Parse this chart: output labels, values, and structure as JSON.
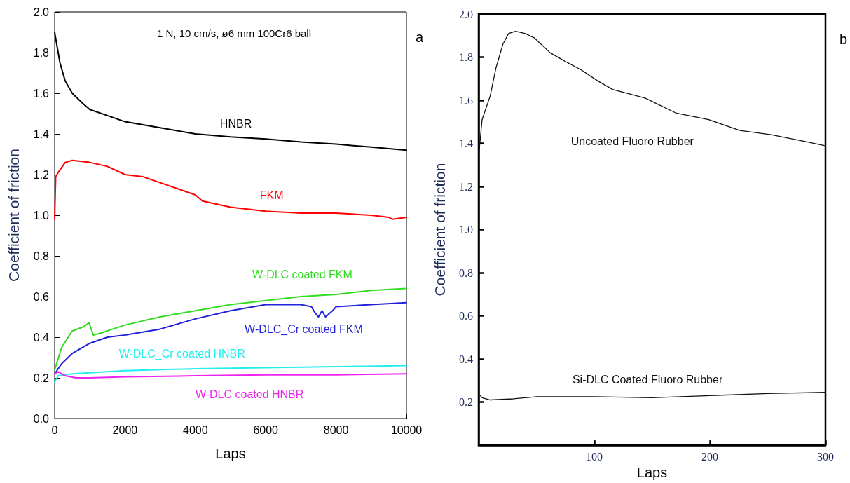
{
  "chart_data": [
    {
      "type": "line",
      "title": "1 N, 10 cm/s, ø6 mm 100Cr6 ball",
      "xlabel": "Laps",
      "ylabel": "Coefficient of friction",
      "xlim": [
        0,
        10000
      ],
      "ylim": [
        0,
        2
      ],
      "xticks": [
        0,
        2000,
        4000,
        6000,
        8000,
        10000
      ],
      "yticks": [
        {
          "value": 0,
          "label": "0.0"
        },
        {
          "value": 0.2,
          "label": "0.2"
        },
        {
          "value": 0.4,
          "label": "0.4"
        },
        {
          "value": 0.6,
          "label": "0.6"
        },
        {
          "value": 0.8,
          "label": "0.8"
        },
        {
          "value": 1,
          "label": "1.0"
        },
        {
          "value": 1.2,
          "label": "1.2"
        },
        {
          "value": 1.4,
          "label": "1.4"
        },
        {
          "value": 1.6,
          "label": "1.6"
        },
        {
          "value": 1.8,
          "label": "1.8"
        },
        {
          "value": 2,
          "label": "2.0"
        }
      ],
      "grid": false,
      "marker": "none",
      "line_style": "solid",
      "series": [
        {
          "name": "HNBR",
          "color": "#000000",
          "x": [
            0,
            50,
            150,
            300,
            500,
            800,
            1000,
            1500,
            2000,
            3000,
            4000,
            5000,
            6000,
            7000,
            8000,
            9000,
            10000
          ],
          "values": [
            1.9,
            1.85,
            1.75,
            1.66,
            1.6,
            1.55,
            1.52,
            1.49,
            1.46,
            1.43,
            1.4,
            1.385,
            1.375,
            1.36,
            1.35,
            1.335,
            1.32
          ]
        },
        {
          "name": "FKM",
          "color": "#ff0000",
          "x": [
            0,
            30,
            100,
            300,
            500,
            1000,
            1500,
            2000,
            2500,
            3000,
            3500,
            4000,
            4200,
            5000,
            6000,
            7000,
            8000,
            9000,
            9500,
            9600,
            10000
          ],
          "values": [
            0.98,
            1.19,
            1.21,
            1.26,
            1.27,
            1.26,
            1.24,
            1.2,
            1.19,
            1.16,
            1.13,
            1.1,
            1.07,
            1.04,
            1.02,
            1.01,
            1.01,
            1.0,
            0.99,
            0.98,
            0.99
          ]
        },
        {
          "name": "W-DLC coated FKM",
          "color": "#33dd22",
          "x": [
            0,
            200,
            500,
            800,
            980,
            1100,
            1300,
            2000,
            3000,
            4000,
            5000,
            6000,
            7000,
            8000,
            9000,
            10000
          ],
          "values": [
            0.24,
            0.35,
            0.43,
            0.45,
            0.47,
            0.41,
            0.42,
            0.46,
            0.5,
            0.53,
            0.56,
            0.58,
            0.6,
            0.61,
            0.63,
            0.64
          ]
        },
        {
          "name": "W-DLC_Cr coated FKM",
          "color": "#2222dd",
          "x": [
            0,
            200,
            500,
            1000,
            1500,
            2000,
            3000,
            4000,
            5000,
            6000,
            7000,
            7300,
            7400,
            7500,
            7600,
            7700,
            7900,
            8000,
            9000,
            10000
          ],
          "values": [
            0.22,
            0.27,
            0.32,
            0.37,
            0.4,
            0.41,
            0.44,
            0.49,
            0.53,
            0.56,
            0.56,
            0.55,
            0.52,
            0.5,
            0.53,
            0.5,
            0.53,
            0.55,
            0.56,
            0.57
          ]
        },
        {
          "name": "W-DLC_Cr coated HNBR",
          "color": "#22eeee",
          "x": [
            0,
            100,
            500,
            1000,
            2000,
            4000,
            6000,
            8000,
            10000
          ],
          "values": [
            0.18,
            0.21,
            0.22,
            0.225,
            0.235,
            0.245,
            0.25,
            0.255,
            0.26
          ]
        },
        {
          "name": "W-DLC coated HNBR",
          "color": "#ee22ee",
          "x": [
            0,
            100,
            300,
            600,
            1000,
            2000,
            4000,
            6000,
            8000,
            10000
          ],
          "values": [
            0.22,
            0.23,
            0.21,
            0.2,
            0.2,
            0.205,
            0.21,
            0.215,
            0.215,
            0.22
          ]
        }
      ],
      "annotations": [
        "a"
      ]
    },
    {
      "type": "line",
      "xlabel": "Laps",
      "ylabel": "Coefficient of friction",
      "xlim": [
        0,
        300
      ],
      "ylim": [
        0,
        2
      ],
      "xticks": [
        100,
        200,
        300
      ],
      "yticks": [
        {
          "value": 0.2,
          "label": "0.2"
        },
        {
          "value": 0.4,
          "label": "0.4"
        },
        {
          "value": 0.6,
          "label": "0.6"
        },
        {
          "value": 0.8,
          "label": "0.8"
        },
        {
          "value": 1,
          "label": "1.0"
        },
        {
          "value": 1.2,
          "label": "1.2"
        },
        {
          "value": 1.4,
          "label": "1.4"
        },
        {
          "value": 1.6,
          "label": "1.6"
        },
        {
          "value": 1.8,
          "label": "1.8"
        },
        {
          "value": 2,
          "label": "2.0"
        }
      ],
      "grid": false,
      "marker": "none",
      "line_style": "solid",
      "series": [
        {
          "name": "Uncoated Fluoro Rubber",
          "color": "#111111",
          "x": [
            0,
            3,
            10,
            15,
            21,
            26,
            32,
            40,
            48,
            62,
            75,
            89,
            103,
            116,
            144,
            171,
            199,
            226,
            253,
            281,
            299
          ],
          "values": [
            1.34,
            1.51,
            1.62,
            1.75,
            1.86,
            1.91,
            1.92,
            1.91,
            1.89,
            1.82,
            1.78,
            1.74,
            1.69,
            1.65,
            1.61,
            1.54,
            1.51,
            1.46,
            1.44,
            1.41,
            1.39
          ]
        },
        {
          "name": "Si-DLC Coated Fluoro Rubber",
          "color": "#111111",
          "x": [
            0,
            3,
            10,
            30,
            50,
            100,
            150,
            200,
            250,
            300
          ],
          "values": [
            0.24,
            0.22,
            0.21,
            0.215,
            0.225,
            0.225,
            0.22,
            0.23,
            0.24,
            0.245
          ]
        }
      ],
      "annotations": [
        "b"
      ]
    }
  ]
}
